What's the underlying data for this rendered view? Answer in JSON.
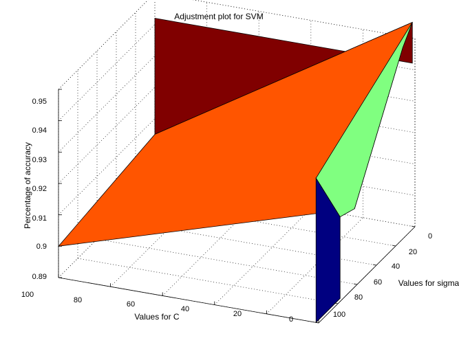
{
  "chart_data": {
    "type": "surface",
    "title": "Adjustment plot for SVM",
    "xlabel": "Values for C",
    "ylabel": "Values for sigma",
    "zlabel": "Percentage of accuracy",
    "x_ticks": [
      "100",
      "80",
      "60",
      "40",
      "20",
      "0"
    ],
    "y_ticks": [
      "0",
      "20",
      "40",
      "60",
      "80",
      "100"
    ],
    "z_ticks": [
      "0.89",
      "0.9",
      "0.91",
      "0.92",
      "0.93",
      "0.94",
      "0.95"
    ],
    "zlim": [
      0.89,
      0.95
    ],
    "grid": true,
    "surface_faces": [
      {
        "color": "#800000",
        "corners": [
          [
            100,
            0,
            0.942
          ],
          [
            1,
            0,
            0.942
          ],
          [
            1,
            0,
            0.955
          ],
          [
            100,
            0,
            0.905
          ]
        ]
      },
      {
        "color": "#ff5500",
        "corners": [
          [
            100,
            0,
            0.905
          ],
          [
            1,
            0,
            0.955
          ],
          [
            1,
            10,
            0.95
          ],
          [
            1,
            60,
            0.914
          ],
          [
            100,
            100,
            0.9
          ]
        ]
      },
      {
        "color": "#80ff80",
        "corners": [
          [
            1,
            0,
            0.955
          ],
          [
            1,
            10,
            0.95
          ],
          [
            1,
            60,
            0.914
          ],
          [
            1,
            75,
            0.916
          ],
          [
            1,
            100,
            0.936
          ]
        ]
      },
      {
        "color": "#000080",
        "corners": [
          [
            1,
            75,
            0.916
          ],
          [
            1,
            100,
            0.936
          ],
          [
            1,
            100,
            0.89
          ],
          [
            1,
            75,
            0.89
          ]
        ]
      }
    ]
  }
}
